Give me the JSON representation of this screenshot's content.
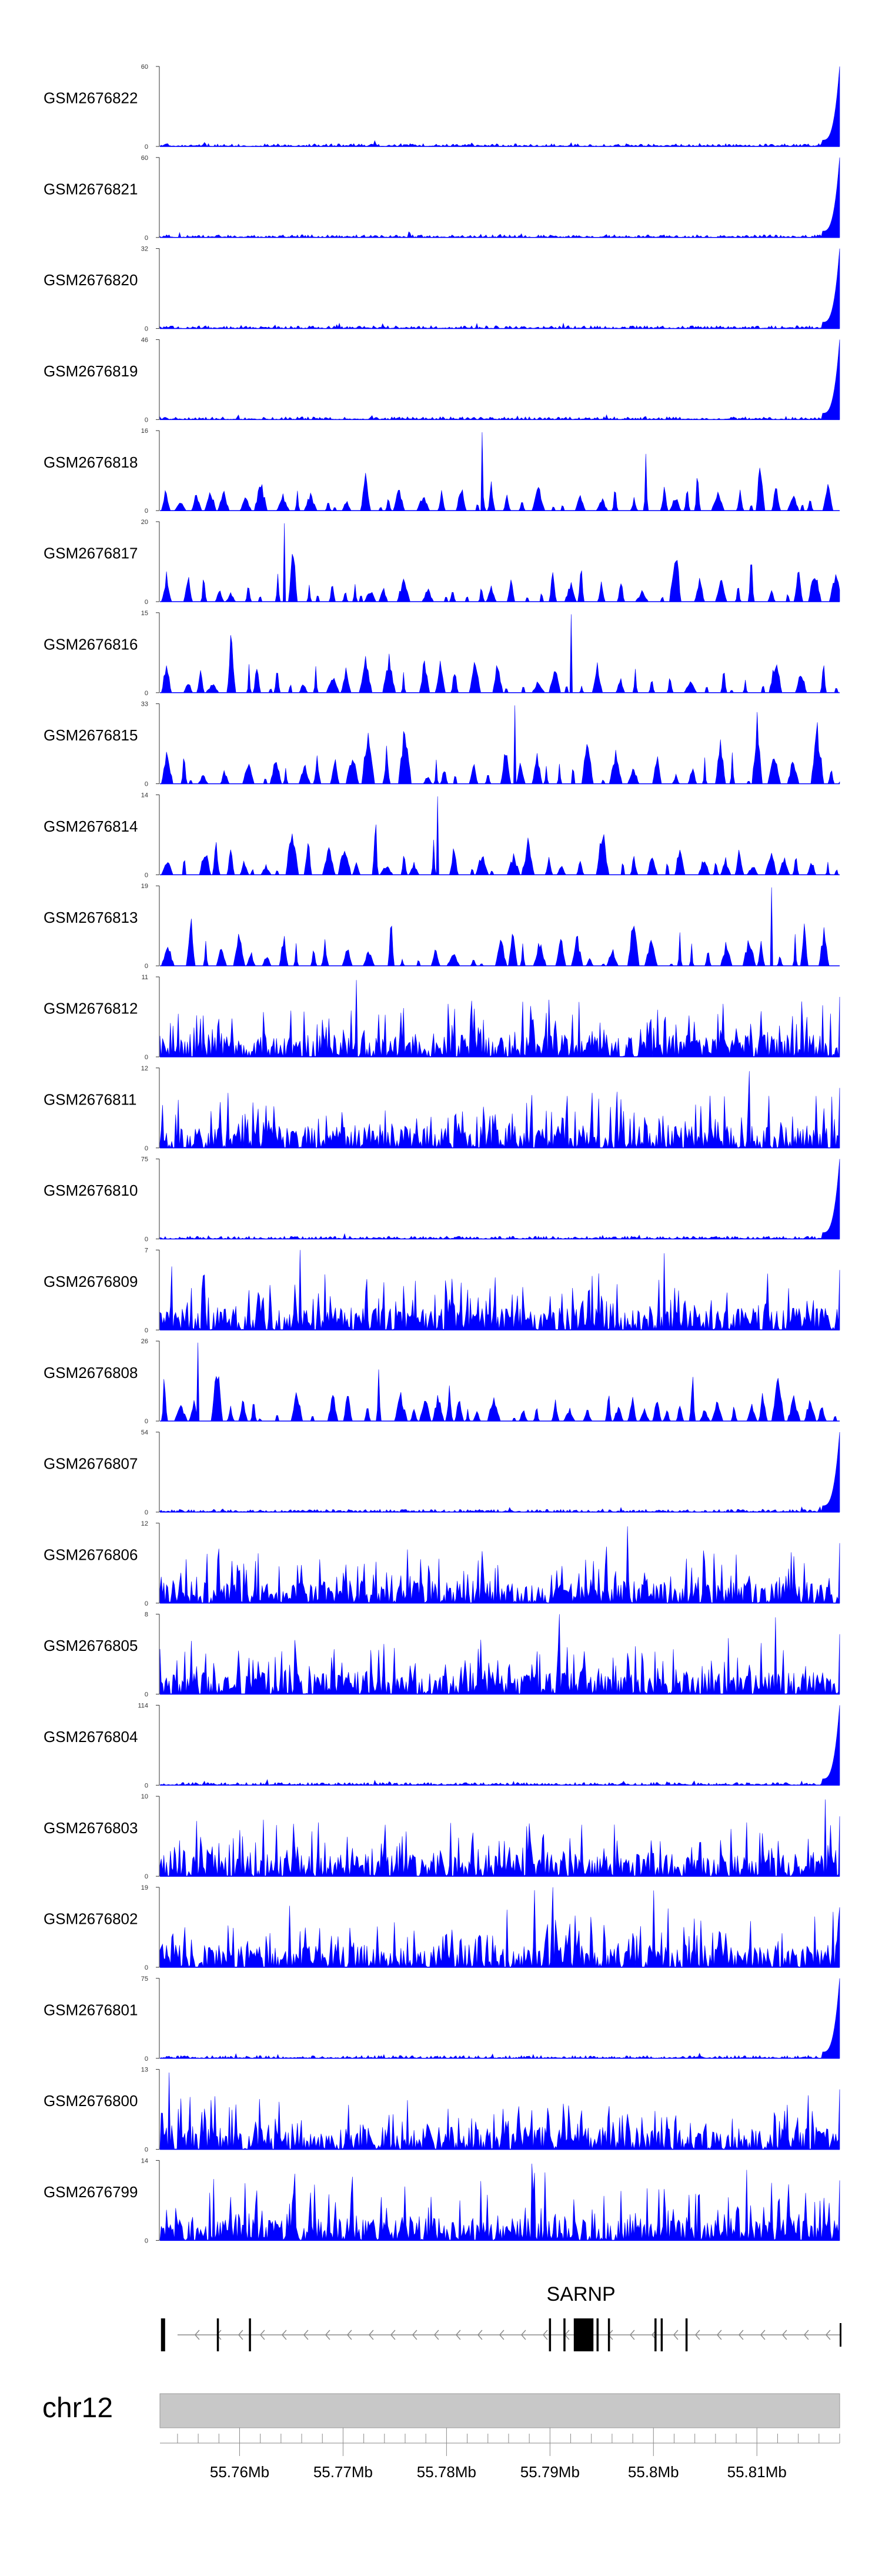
{
  "chart_data": {
    "type": "area",
    "chromosome": "chr12",
    "gene": {
      "name": "SARNP",
      "strand": "-",
      "start": 55754000,
      "end": 55818000
    },
    "region": {
      "start": 55752300,
      "end": 55818000
    },
    "axis_ticks": [
      {
        "pos": 55760000,
        "label": "55.76Mb"
      },
      {
        "pos": 55770000,
        "label": "55.77Mb"
      },
      {
        "pos": 55780000,
        "label": "55.78Mb"
      },
      {
        "pos": 55790000,
        "label": "55.79Mb"
      },
      {
        "pos": 55800000,
        "label": "55.8Mb"
      },
      {
        "pos": 55810000,
        "label": "55.81Mb"
      }
    ],
    "series_color": "#0000ff",
    "series": [
      {
        "name": "GSM2676822",
        "ymin": 0,
        "ymax": 60,
        "profile": "spike"
      },
      {
        "name": "GSM2676821",
        "ymin": 0,
        "ymax": 60,
        "profile": "spike"
      },
      {
        "name": "GSM2676820",
        "ymin": 0,
        "ymax": 32,
        "profile": "spike"
      },
      {
        "name": "GSM2676819",
        "ymin": 0,
        "ymax": 46,
        "profile": "spike"
      },
      {
        "name": "GSM2676818",
        "ymin": 0,
        "ymax": 16,
        "profile": "sparse"
      },
      {
        "name": "GSM2676817",
        "ymin": 0,
        "ymax": 20,
        "profile": "sparse"
      },
      {
        "name": "GSM2676816",
        "ymin": 0,
        "ymax": 15,
        "profile": "sparse"
      },
      {
        "name": "GSM2676815",
        "ymin": 0,
        "ymax": 33,
        "profile": "sparse"
      },
      {
        "name": "GSM2676814",
        "ymin": 0,
        "ymax": 14,
        "profile": "sparse"
      },
      {
        "name": "GSM2676813",
        "ymin": 0,
        "ymax": 19,
        "profile": "sparse"
      },
      {
        "name": "GSM2676812",
        "ymin": 0,
        "ymax": 11,
        "profile": "dense"
      },
      {
        "name": "GSM2676811",
        "ymin": 0,
        "ymax": 12,
        "profile": "dense"
      },
      {
        "name": "GSM2676810",
        "ymin": 0,
        "ymax": 75,
        "profile": "spike"
      },
      {
        "name": "GSM2676809",
        "ymin": 0,
        "ymax": 7,
        "profile": "dense"
      },
      {
        "name": "GSM2676808",
        "ymin": 0,
        "ymax": 26,
        "profile": "sparse"
      },
      {
        "name": "GSM2676807",
        "ymin": 0,
        "ymax": 54,
        "profile": "spike"
      },
      {
        "name": "GSM2676806",
        "ymin": 0,
        "ymax": 12,
        "profile": "dense"
      },
      {
        "name": "GSM2676805",
        "ymin": 0,
        "ymax": 8,
        "profile": "dense"
      },
      {
        "name": "GSM2676804",
        "ymin": 0,
        "ymax": 114,
        "profile": "spike"
      },
      {
        "name": "GSM2676803",
        "ymin": 0,
        "ymax": 10,
        "profile": "dense"
      },
      {
        "name": "GSM2676802",
        "ymin": 0,
        "ymax": 19,
        "profile": "dense"
      },
      {
        "name": "GSM2676801",
        "ymin": 0,
        "ymax": 75,
        "profile": "spike"
      },
      {
        "name": "GSM2676800",
        "ymin": 0,
        "ymax": 13,
        "profile": "dense"
      },
      {
        "name": "GSM2676799",
        "ymin": 0,
        "ymax": 14,
        "profile": "dense"
      }
    ],
    "exons": [
      {
        "start": 55752400,
        "end": 55752800,
        "height": "tall"
      },
      {
        "start": 55757800,
        "end": 55758000,
        "height": "tall"
      },
      {
        "start": 55760900,
        "end": 55761100,
        "height": "tall"
      },
      {
        "start": 55789900,
        "end": 55790100,
        "height": "tall"
      },
      {
        "start": 55791300,
        "end": 55791500,
        "height": "tall"
      },
      {
        "start": 55792300,
        "end": 55794200,
        "height": "tall"
      },
      {
        "start": 55794500,
        "end": 55794700,
        "height": "tall"
      },
      {
        "start": 55795600,
        "end": 55795800,
        "height": "tall"
      },
      {
        "start": 55800100,
        "end": 55800300,
        "height": "tall"
      },
      {
        "start": 55800700,
        "end": 55800900,
        "height": "tall"
      },
      {
        "start": 55803100,
        "end": 55803300,
        "height": "tall"
      },
      {
        "start": 55818000,
        "end": 55818100,
        "height": "short"
      }
    ]
  }
}
